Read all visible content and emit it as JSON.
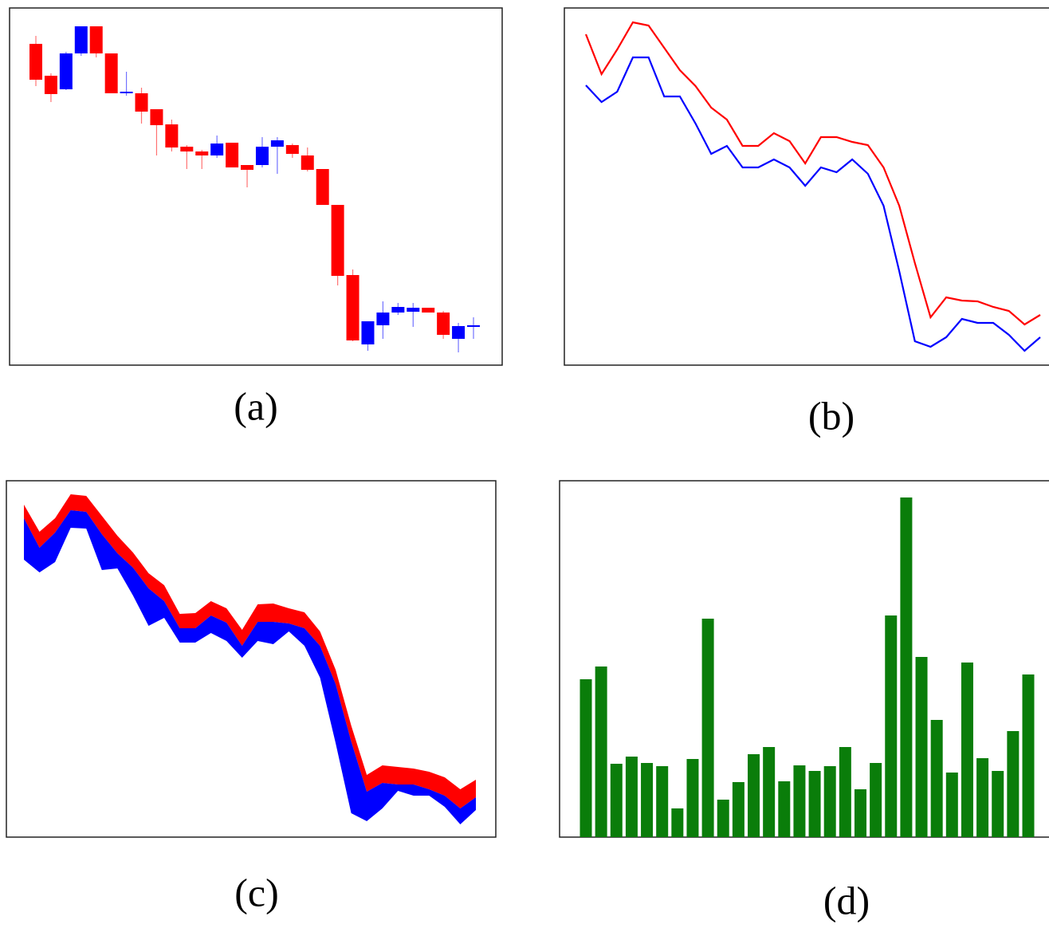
{
  "chart_data": [
    {
      "type": "candlestick",
      "caption": "(a)",
      "up_color": "#0000ff",
      "down_color": "#ff0000",
      "ylim": [
        0,
        448
      ],
      "open": [
        403,
        363,
        346,
        391,
        425,
        391,
        341,
        341,
        321,
        302,
        274,
        268,
        263,
        279,
        251,
        251,
        274,
        276,
        263,
        246,
        201,
        113,
        26,
        50,
        66,
        67,
        72,
        66,
        33,
        48
      ],
      "high": [
        413,
        366,
        393,
        425,
        425,
        391,
        368,
        348,
        321,
        308,
        276,
        270,
        288,
        279,
        251,
        286,
        286,
        278,
        273,
        246,
        201,
        120,
        55,
        80,
        78,
        78,
        72,
        68,
        53,
        60
      ],
      "low": [
        350,
        330,
        345,
        388,
        386,
        341,
        338,
        303,
        263,
        268,
        246,
        246,
        260,
        248,
        223,
        248,
        240,
        260,
        243,
        201,
        100,
        30,
        18,
        33,
        63,
        48,
        66,
        33,
        16,
        33
      ],
      "close": [
        358,
        340,
        391,
        425,
        391,
        341,
        343,
        318,
        301,
        273,
        268,
        263,
        278,
        248,
        245,
        274,
        282,
        265,
        245,
        201,
        112,
        31,
        55,
        66,
        73,
        72,
        66,
        38,
        49,
        50
      ]
    },
    {
      "type": "line",
      "caption": "(b)",
      "ylim": [
        0,
        448
      ],
      "series": [
        {
          "color": "#ff0000",
          "values": [
            415,
            365,
            396,
            430,
            426,
            398,
            370,
            350,
            323,
            308,
            275,
            275,
            291,
            281,
            253,
            286,
            286,
            280,
            276,
            248,
            200,
            128,
            60,
            85,
            81,
            80,
            73,
            68,
            51,
            63
          ]
        },
        {
          "color": "#0000ff",
          "values": [
            351,
            330,
            343,
            386,
            386,
            337,
            337,
            303,
            265,
            275,
            248,
            248,
            258,
            248,
            225,
            248,
            242,
            258,
            240,
            200,
            118,
            30,
            23,
            35,
            58,
            53,
            53,
            38,
            18,
            35
          ]
        }
      ]
    },
    {
      "type": "band",
      "caption": "(c)",
      "ylim": [
        0,
        447
      ],
      "series": [
        {
          "color": "#ff0000",
          "values": [
            417,
            383,
            400,
            430,
            428,
            403,
            378,
            357,
            331,
            316,
            280,
            281,
            296,
            287,
            260,
            292,
            293,
            287,
            282,
            258,
            210,
            140,
            78,
            90,
            88,
            86,
            82,
            75,
            60,
            72
          ]
        },
        {
          "color": "#0000ff",
          "values": [
            400,
            363,
            382,
            410,
            408,
            380,
            356,
            338,
            312,
            296,
            262,
            262,
            278,
            269,
            240,
            270,
            270,
            268,
            262,
            240,
            192,
            120,
            57,
            68,
            66,
            66,
            60,
            52,
            36,
            50
          ]
        },
        {
          "values": [
            348,
            332,
            345,
            388,
            387,
            335,
            337,
            303,
            265,
            275,
            244,
            244,
            256,
            246,
            225,
            246,
            242,
            258,
            240,
            200,
            118,
            30,
            20,
            36,
            58,
            52,
            52,
            38,
            16,
            34
          ]
        }
      ]
    },
    {
      "type": "bar",
      "caption": "(d)",
      "color": "#0a7d0a",
      "ylim": [
        0,
        447
      ],
      "values": [
        198,
        214,
        92,
        101,
        93,
        89,
        36,
        98,
        274,
        47,
        69,
        104,
        113,
        70,
        90,
        83,
        89,
        113,
        60,
        93,
        278,
        426,
        226,
        147,
        81,
        219,
        99,
        83,
        133,
        204
      ]
    }
  ]
}
